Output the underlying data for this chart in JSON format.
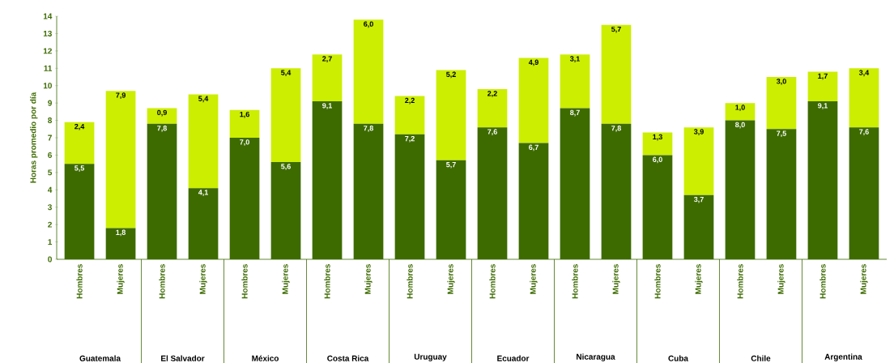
{
  "chart_data": {
    "type": "bar",
    "stacked": true,
    "ylabel": "Horas promedio por día",
    "categories": [
      "Hombres",
      "Mujeres",
      "Hombres",
      "Mujeres",
      "Hombres",
      "Mujeres",
      "Hombres",
      "Mujeres",
      "Hombres",
      "Mujeres",
      "Hombres",
      "Mujeres",
      "Hombres",
      "Mujeres",
      "Hombres",
      "Mujeres",
      "Hombres",
      "Mujeres",
      "Hombres",
      "Mujeres"
    ],
    "annotations": [
      "Guatemala",
      "El Salvador",
      "México",
      "Costa Rica",
      "Uruguay",
      "Ecuador",
      "Nicaragua",
      "Cuba",
      "Chile",
      "Argentina"
    ],
    "series": [
      {
        "color": "#3d6b00",
        "values": [
          5.5,
          1.8,
          7.8,
          4.1,
          7.0,
          5.6,
          9.1,
          7.8,
          7.2,
          5.7,
          7.6,
          6.7,
          8.7,
          7.8,
          6.0,
          3.7,
          8.0,
          7.5,
          9.1,
          7.6
        ],
        "value_labels": [
          "5,5",
          "1,8",
          "7,8",
          "4,1",
          "7,0",
          "5,6",
          "9,1",
          "7,8",
          "7,2",
          "5,7",
          "7,6",
          "6,7",
          "8,7",
          "7,8",
          "6,0",
          "3,7",
          "8,0",
          "7,5",
          "9,1",
          "7,6"
        ]
      },
      {
        "color": "#ccee00",
        "values": [
          2.4,
          7.9,
          0.9,
          5.4,
          1.6,
          5.4,
          2.7,
          6.0,
          2.2,
          5.2,
          2.2,
          4.9,
          3.1,
          5.7,
          1.3,
          3.9,
          1.0,
          3.0,
          1.7,
          3.4
        ],
        "value_labels": [
          "2,4",
          "7,9",
          "0,9",
          "5,4",
          "1,6",
          "5,4",
          "2,7",
          "6,0",
          "2,2",
          "5,2",
          "2,2",
          "4,9",
          "3,1",
          "5,7",
          "1,3",
          "3,9",
          "1,0",
          "3,0",
          "1,7",
          "3,4"
        ]
      }
    ],
    "ylim": [
      0,
      14
    ],
    "yticks": [
      0,
      1,
      2,
      3,
      4,
      5,
      6,
      7,
      8,
      9,
      10,
      11,
      12,
      13,
      14
    ],
    "grid": false
  }
}
